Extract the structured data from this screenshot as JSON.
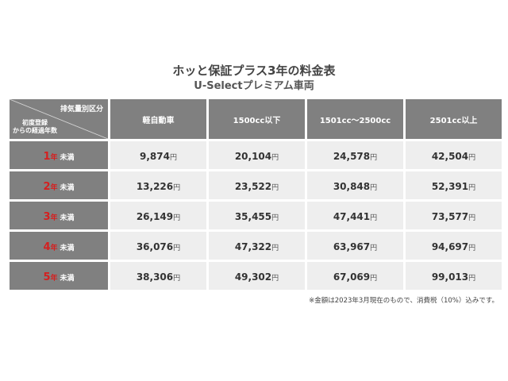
{
  "title": "ホッと保証プラス3年の料金表",
  "subtitle": "U-Selectプレミアム車両",
  "corner": {
    "top_label": "排気量別区分",
    "bottom_label_1": "初度登録",
    "bottom_label_2": "からの経過年数"
  },
  "columns": [
    "軽自動車",
    "1500cc以下",
    "1501cc～2500cc",
    "2501cc以上"
  ],
  "currency_unit": "円",
  "rows": [
    {
      "num": "1",
      "nen": "年",
      "suffix": "未満",
      "values": [
        "9,874",
        "20,104",
        "24,578",
        "42,504"
      ]
    },
    {
      "num": "2",
      "nen": "年",
      "suffix": "未満",
      "values": [
        "13,226",
        "23,522",
        "30,848",
        "52,391"
      ]
    },
    {
      "num": "3",
      "nen": "年",
      "suffix": "未満",
      "values": [
        "26,149",
        "35,455",
        "47,441",
        "73,577"
      ]
    },
    {
      "num": "4",
      "nen": "年",
      "suffix": "未満",
      "values": [
        "36,076",
        "47,322",
        "63,967",
        "94,697"
      ]
    },
    {
      "num": "5",
      "nen": "年",
      "suffix": "未満",
      "values": [
        "38,306",
        "49,302",
        "67,069",
        "99,013"
      ]
    }
  ],
  "note": "※金額は2023年3月現在のもので、消費税（10%）込みです。",
  "colors": {
    "header_bg": "#808080",
    "cell_bg": "#eeeeee",
    "accent_red": "#d42020"
  }
}
